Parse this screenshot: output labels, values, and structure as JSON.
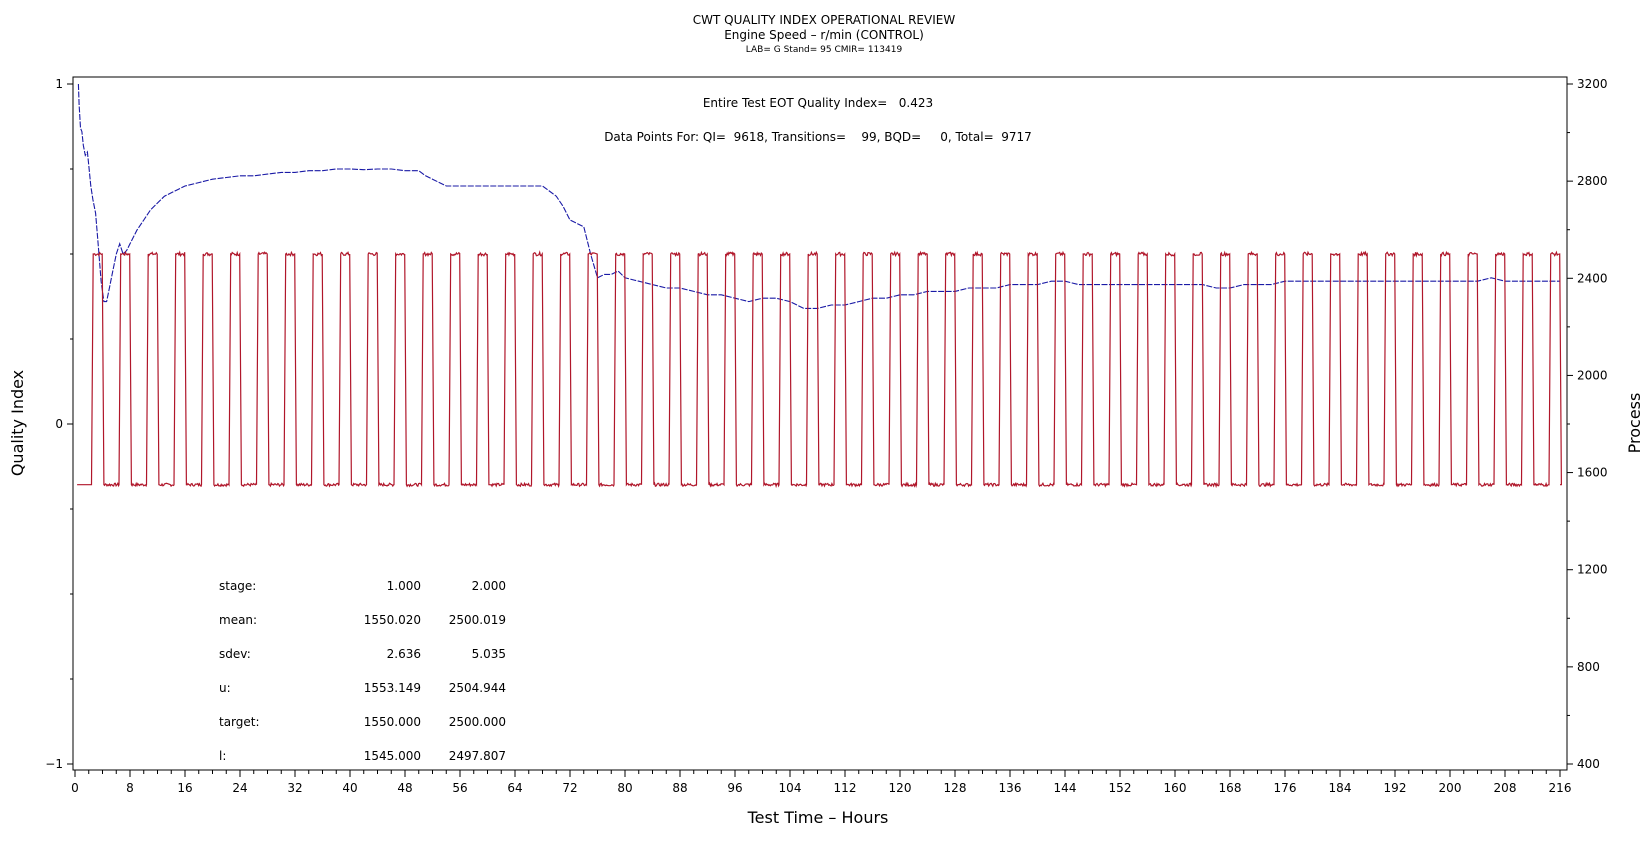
{
  "chart_data": {
    "type": "line",
    "title": "CWT QUALITY INDEX OPERATIONAL REVIEW",
    "subtitle": "Engine Speed – r/min (CONTROL)",
    "subtitle2": "LAB= G Stand= 95 CMIR= 113419",
    "xlabel": "Test Time – Hours",
    "ylabel": "Quality Index",
    "y2label": "Process",
    "xlim": [
      0,
      216
    ],
    "ylim": [
      -1,
      1
    ],
    "y2lim": [
      400,
      3200
    ],
    "xticks": [
      0,
      8,
      16,
      24,
      32,
      40,
      48,
      56,
      64,
      72,
      80,
      88,
      96,
      104,
      112,
      120,
      128,
      136,
      144,
      152,
      160,
      168,
      176,
      184,
      192,
      200,
      208,
      216
    ],
    "yticks": [
      -1,
      0,
      1
    ],
    "y2ticks": [
      400,
      800,
      1200,
      1600,
      2000,
      2400,
      2800,
      3200
    ],
    "grid": false,
    "annotation_quality": "Entire Test EOT Quality Index=   0.423",
    "annotation_points": "Data Points For: QI=  9618, Transitions=    99, BQD=     0, Total=  9717",
    "series": [
      {
        "axis": "left",
        "color": "#1a1aa6",
        "style": "dashed",
        "points": [
          [
            0.5,
            1.0
          ],
          [
            0.6,
            0.94
          ],
          [
            0.8,
            0.87
          ],
          [
            1.0,
            0.86
          ],
          [
            1.2,
            0.82
          ],
          [
            1.5,
            0.79
          ],
          [
            1.8,
            0.8
          ],
          [
            2.0,
            0.76
          ],
          [
            2.3,
            0.7
          ],
          [
            2.6,
            0.66
          ],
          [
            3.0,
            0.62
          ],
          [
            3.4,
            0.52
          ],
          [
            3.8,
            0.42
          ],
          [
            4.2,
            0.36
          ],
          [
            4.6,
            0.36
          ],
          [
            5.0,
            0.4
          ],
          [
            5.5,
            0.45
          ],
          [
            6.0,
            0.5
          ],
          [
            6.5,
            0.53
          ],
          [
            7.0,
            0.5
          ],
          [
            7.5,
            0.51
          ],
          [
            8.0,
            0.53
          ],
          [
            9.0,
            0.57
          ],
          [
            10,
            0.6
          ],
          [
            11,
            0.63
          ],
          [
            12,
            0.65
          ],
          [
            13,
            0.67
          ],
          [
            14,
            0.68
          ],
          [
            16,
            0.7
          ],
          [
            18,
            0.71
          ],
          [
            20,
            0.72
          ],
          [
            22,
            0.725
          ],
          [
            24,
            0.73
          ],
          [
            26,
            0.73
          ],
          [
            28,
            0.735
          ],
          [
            30,
            0.74
          ],
          [
            32,
            0.74
          ],
          [
            34,
            0.745
          ],
          [
            36,
            0.745
          ],
          [
            38,
            0.75
          ],
          [
            40,
            0.75
          ],
          [
            42,
            0.748
          ],
          [
            44,
            0.75
          ],
          [
            46,
            0.75
          ],
          [
            48,
            0.745
          ],
          [
            50,
            0.745
          ],
          [
            51,
            0.73
          ],
          [
            52,
            0.72
          ],
          [
            54,
            0.7
          ],
          [
            56,
            0.7
          ],
          [
            58,
            0.7
          ],
          [
            60,
            0.7
          ],
          [
            62,
            0.7
          ],
          [
            64,
            0.7
          ],
          [
            66,
            0.7
          ],
          [
            68,
            0.7
          ],
          [
            70,
            0.67
          ],
          [
            71,
            0.64
          ],
          [
            72,
            0.6
          ],
          [
            73,
            0.59
          ],
          [
            74,
            0.58
          ],
          [
            75,
            0.5
          ],
          [
            76,
            0.43
          ],
          [
            77,
            0.44
          ],
          [
            78,
            0.44
          ],
          [
            79,
            0.45
          ],
          [
            80,
            0.43
          ],
          [
            82,
            0.42
          ],
          [
            84,
            0.41
          ],
          [
            86,
            0.4
          ],
          [
            88,
            0.4
          ],
          [
            90,
            0.39
          ],
          [
            92,
            0.38
          ],
          [
            94,
            0.38
          ],
          [
            96,
            0.37
          ],
          [
            98,
            0.36
          ],
          [
            100,
            0.37
          ],
          [
            102,
            0.37
          ],
          [
            104,
            0.36
          ],
          [
            106,
            0.34
          ],
          [
            108,
            0.34
          ],
          [
            110,
            0.35
          ],
          [
            112,
            0.35
          ],
          [
            114,
            0.36
          ],
          [
            116,
            0.37
          ],
          [
            118,
            0.37
          ],
          [
            120,
            0.38
          ],
          [
            122,
            0.38
          ],
          [
            124,
            0.39
          ],
          [
            126,
            0.39
          ],
          [
            128,
            0.39
          ],
          [
            130,
            0.4
          ],
          [
            132,
            0.4
          ],
          [
            134,
            0.4
          ],
          [
            136,
            0.41
          ],
          [
            138,
            0.41
          ],
          [
            140,
            0.41
          ],
          [
            142,
            0.42
          ],
          [
            144,
            0.42
          ],
          [
            146,
            0.41
          ],
          [
            148,
            0.41
          ],
          [
            150,
            0.41
          ],
          [
            152,
            0.41
          ],
          [
            154,
            0.41
          ],
          [
            156,
            0.41
          ],
          [
            158,
            0.41
          ],
          [
            160,
            0.41
          ],
          [
            162,
            0.41
          ],
          [
            164,
            0.41
          ],
          [
            166,
            0.4
          ],
          [
            168,
            0.4
          ],
          [
            170,
            0.41
          ],
          [
            172,
            0.41
          ],
          [
            174,
            0.41
          ],
          [
            176,
            0.42
          ],
          [
            178,
            0.42
          ],
          [
            180,
            0.42
          ],
          [
            182,
            0.42
          ],
          [
            184,
            0.42
          ],
          [
            186,
            0.42
          ],
          [
            188,
            0.42
          ],
          [
            190,
            0.42
          ],
          [
            192,
            0.42
          ],
          [
            194,
            0.42
          ],
          [
            196,
            0.42
          ],
          [
            198,
            0.42
          ],
          [
            200,
            0.42
          ],
          [
            202,
            0.42
          ],
          [
            204,
            0.42
          ],
          [
            206,
            0.43
          ],
          [
            208,
            0.42
          ],
          [
            210,
            0.42
          ],
          [
            212,
            0.42
          ],
          [
            214,
            0.42
          ],
          [
            216,
            0.42
          ]
        ]
      },
      {
        "axis": "right",
        "color": "#b0162a",
        "style": "solid",
        "waveform": {
          "low": 1550,
          "high": 2500,
          "start": 2.4,
          "period": 4.0,
          "high_duration": 1.3,
          "ramp": 0.25,
          "end": 216
        }
      }
    ],
    "stats_table": {
      "rows": [
        {
          "label": "stage:",
          "v1": "1.000",
          "v2": "2.000"
        },
        {
          "label": "mean:",
          "v1": "1550.020",
          "v2": "2500.019"
        },
        {
          "label": "sdev:",
          "v1": "2.636",
          "v2": "5.035"
        },
        {
          "label": "u:",
          "v1": "1553.149",
          "v2": "2504.944"
        },
        {
          "label": "target:",
          "v1": "1550.000",
          "v2": "2500.000"
        },
        {
          "label": "l:",
          "v1": "1545.000",
          "v2": "2497.807"
        }
      ]
    }
  }
}
